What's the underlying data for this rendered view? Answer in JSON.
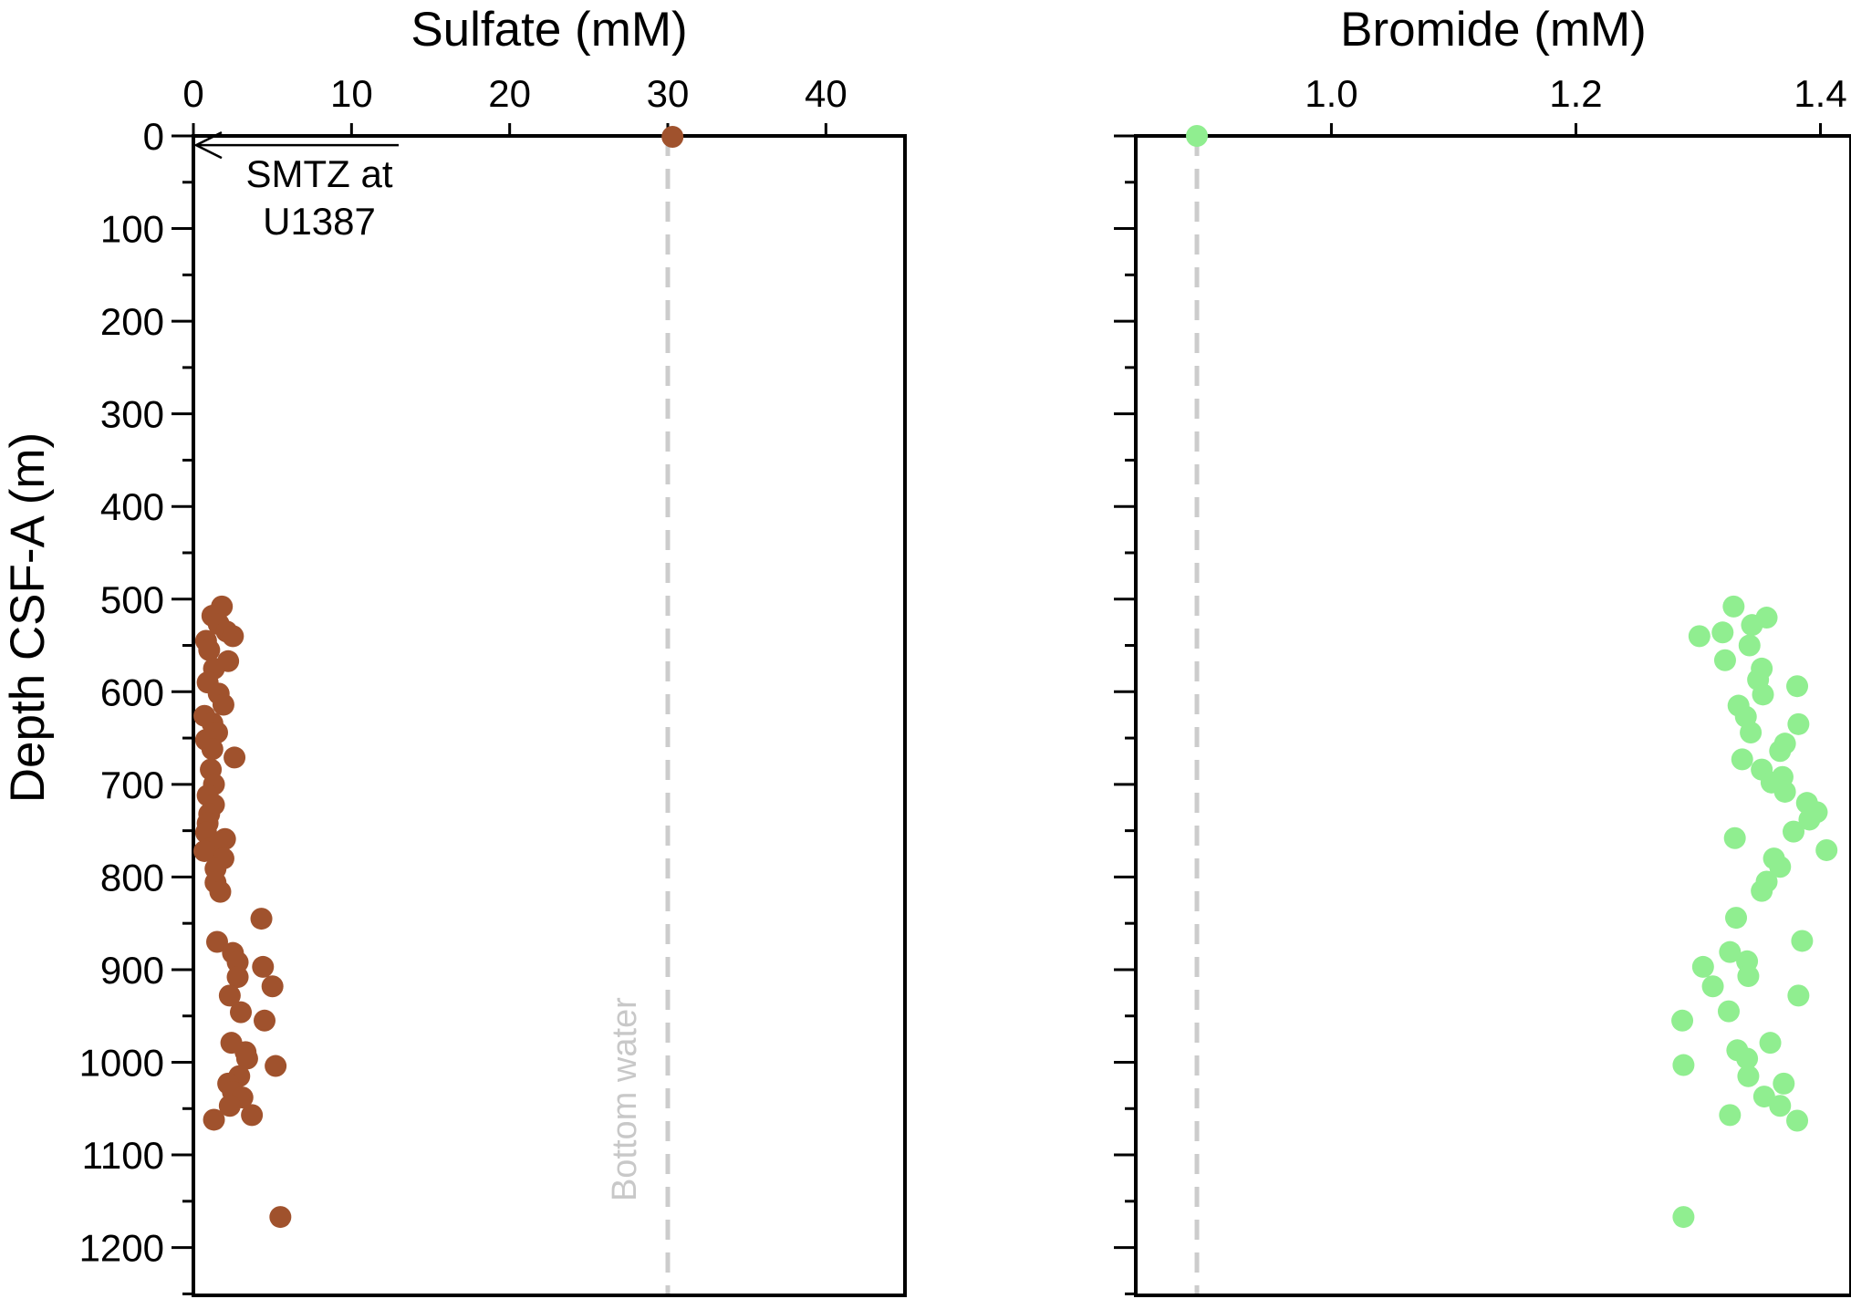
{
  "chart_data": [
    {
      "type": "scatter",
      "title": "",
      "xlabel": "Sulfate (mM)",
      "ylabel": "Depth CSF-A (m)",
      "xlim": [
        0,
        45
      ],
      "ylim": [
        1250,
        0
      ],
      "x_ticks": [
        0,
        10,
        20,
        30,
        40
      ],
      "x_tick_labels": [
        "0",
        "10",
        "20",
        "30",
        "40"
      ],
      "y_ticks": [
        0,
        100,
        200,
        300,
        400,
        500,
        600,
        700,
        800,
        900,
        1000,
        1100,
        1200
      ],
      "y_tick_labels": [
        "0",
        "100",
        "200",
        "300",
        "400",
        "500",
        "600",
        "700",
        "800",
        "900",
        "1000",
        "1100",
        "1200"
      ],
      "x_axis_position": "top",
      "grid": false,
      "marker_color": "#a0522d",
      "reference_line": {
        "x": 30,
        "label": "Bottom water",
        "color": "#cccccc",
        "style": "dashed"
      },
      "annotation": {
        "text_lines": [
          "SMTZ at",
          "U1387"
        ],
        "arrow_to": [
          0,
          10
        ]
      },
      "points": [
        [
          30.3,
          1
        ],
        [
          1.8,
          508
        ],
        [
          1.2,
          518
        ],
        [
          1.6,
          527
        ],
        [
          2.1,
          535
        ],
        [
          2.5,
          540
        ],
        [
          0.8,
          545
        ],
        [
          1.0,
          555
        ],
        [
          2.2,
          567
        ],
        [
          1.3,
          575
        ],
        [
          0.9,
          590
        ],
        [
          1.6,
          602
        ],
        [
          1.9,
          614
        ],
        [
          0.7,
          626
        ],
        [
          1.2,
          634
        ],
        [
          1.5,
          644
        ],
        [
          0.8,
          652
        ],
        [
          1.2,
          662
        ],
        [
          2.6,
          671
        ],
        [
          1.1,
          684
        ],
        [
          1.3,
          700
        ],
        [
          0.9,
          712
        ],
        [
          1.3,
          722
        ],
        [
          1.0,
          732
        ],
        [
          0.9,
          742
        ],
        [
          0.8,
          752
        ],
        [
          2.0,
          759
        ],
        [
          1.1,
          769
        ],
        [
          0.7,
          772
        ],
        [
          1.9,
          780
        ],
        [
          1.4,
          791
        ],
        [
          1.4,
          806
        ],
        [
          1.7,
          816
        ],
        [
          4.3,
          845
        ],
        [
          1.5,
          870
        ],
        [
          2.5,
          882
        ],
        [
          2.8,
          892
        ],
        [
          4.4,
          897
        ],
        [
          2.8,
          908
        ],
        [
          5.0,
          918
        ],
        [
          2.3,
          928
        ],
        [
          3.0,
          946
        ],
        [
          4.5,
          955
        ],
        [
          2.4,
          979
        ],
        [
          3.3,
          989
        ],
        [
          3.4,
          996
        ],
        [
          5.2,
          1004
        ],
        [
          2.9,
          1015
        ],
        [
          2.2,
          1023
        ],
        [
          2.5,
          1032
        ],
        [
          3.1,
          1038
        ],
        [
          2.3,
          1047
        ],
        [
          3.7,
          1057
        ],
        [
          1.3,
          1062
        ],
        [
          5.5,
          1167
        ]
      ]
    },
    {
      "type": "scatter",
      "title": "",
      "xlabel": "Bromide (mM)",
      "ylabel": "",
      "xlim": [
        0.84,
        1.425
      ],
      "ylim": [
        1250,
        0
      ],
      "x_ticks": [
        1.0,
        1.2,
        1.4
      ],
      "x_tick_labels": [
        "1.0",
        "1.2",
        "1.4"
      ],
      "y_ticks": [
        0,
        100,
        200,
        300,
        400,
        500,
        600,
        700,
        800,
        900,
        1000,
        1100,
        1200
      ],
      "x_axis_position": "top",
      "grid": false,
      "marker_color": "#90ee90",
      "reference_line": {
        "x": 0.89,
        "color": "#cccccc",
        "style": "dashed"
      },
      "points": [
        [
          0.89,
          0
        ],
        [
          1.329,
          508
        ],
        [
          1.356,
          520
        ],
        [
          1.344,
          528
        ],
        [
          1.301,
          540
        ],
        [
          1.32,
          536
        ],
        [
          1.342,
          550
        ],
        [
          1.322,
          566
        ],
        [
          1.352,
          575
        ],
        [
          1.349,
          587
        ],
        [
          1.381,
          594
        ],
        [
          1.353,
          603
        ],
        [
          1.333,
          615
        ],
        [
          1.339,
          627
        ],
        [
          1.382,
          635
        ],
        [
          1.343,
          644
        ],
        [
          1.371,
          656
        ],
        [
          1.367,
          664
        ],
        [
          1.336,
          673
        ],
        [
          1.352,
          684
        ],
        [
          1.369,
          692
        ],
        [
          1.36,
          698
        ],
        [
          1.371,
          708
        ],
        [
          1.389,
          720
        ],
        [
          1.397,
          730
        ],
        [
          1.391,
          738
        ],
        [
          1.378,
          751
        ],
        [
          1.33,
          758
        ],
        [
          1.405,
          771
        ],
        [
          1.362,
          780
        ],
        [
          1.367,
          789
        ],
        [
          1.356,
          805
        ],
        [
          1.352,
          815
        ],
        [
          1.331,
          844
        ],
        [
          1.385,
          869
        ],
        [
          1.326,
          881
        ],
        [
          1.34,
          891
        ],
        [
          1.304,
          897
        ],
        [
          1.341,
          907
        ],
        [
          1.312,
          918
        ],
        [
          1.382,
          928
        ],
        [
          1.325,
          945
        ],
        [
          1.287,
          955
        ],
        [
          1.359,
          979
        ],
        [
          1.332,
          987
        ],
        [
          1.34,
          996
        ],
        [
          1.288,
          1003
        ],
        [
          1.341,
          1015
        ],
        [
          1.37,
          1023
        ],
        [
          1.354,
          1037
        ],
        [
          1.367,
          1047
        ],
        [
          1.326,
          1057
        ],
        [
          1.381,
          1063
        ],
        [
          1.288,
          1167
        ]
      ]
    }
  ]
}
